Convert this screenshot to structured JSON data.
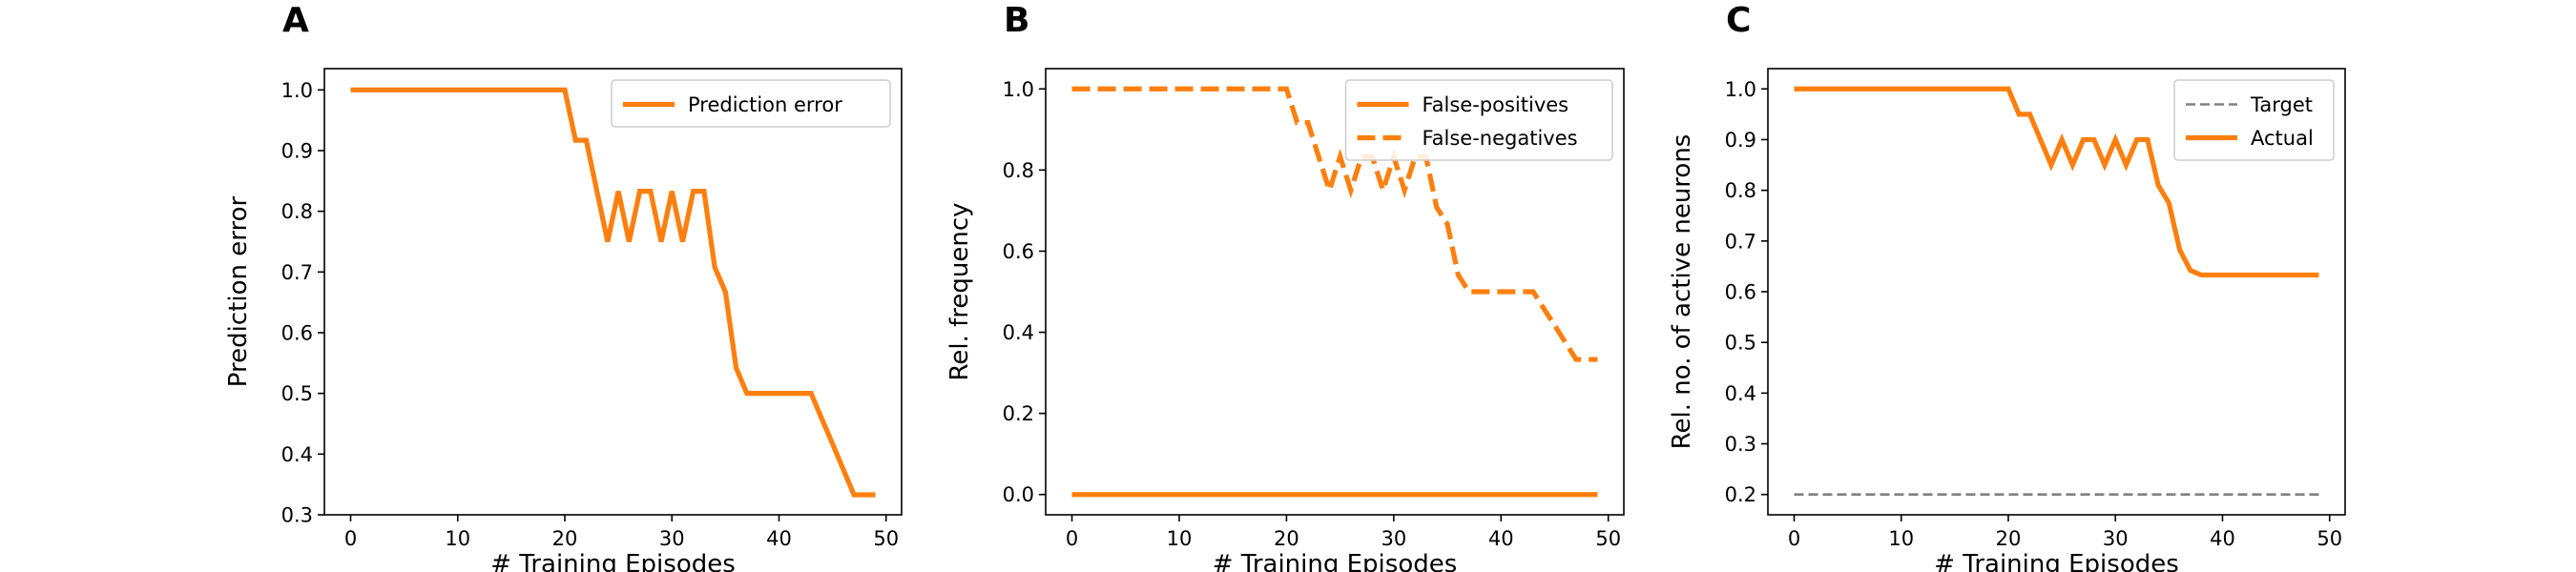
{
  "chart_data": [
    {
      "type": "line",
      "panel_label": "A",
      "xlabel": "# Training Episodes",
      "ylabel": "Prediction error",
      "xlim": [
        -2.45,
        51.45
      ],
      "ylim": [
        0.3,
        1.035
      ],
      "xticks": [
        0,
        10,
        20,
        30,
        40,
        50
      ],
      "yticks": [
        0.3,
        0.4,
        0.5,
        0.6,
        0.7,
        0.8,
        0.9,
        1.0
      ],
      "ytick_labels": [
        "0.3",
        "0.4",
        "0.5",
        "0.6",
        "0.7",
        "0.8",
        "0.9",
        "1.0"
      ],
      "legend_position": "top-right",
      "grid": false,
      "series": [
        {
          "name": "Prediction error",
          "color": "#ff7f0e",
          "style": "solid",
          "x": [
            0,
            20,
            21,
            22,
            23,
            24,
            25,
            26,
            27,
            28,
            29,
            30,
            31,
            32,
            33,
            34,
            35,
            36,
            37,
            43,
            44,
            45,
            46,
            47,
            48,
            49
          ],
          "y": [
            1.0,
            1.0,
            0.917,
            0.917,
            0.833,
            0.75,
            0.833,
            0.75,
            0.833,
            0.833,
            0.75,
            0.833,
            0.75,
            0.833,
            0.833,
            0.708,
            0.667,
            0.542,
            0.5,
            0.5,
            0.458,
            0.417,
            0.375,
            0.333,
            0.333,
            0.333
          ]
        }
      ]
    },
    {
      "type": "line",
      "panel_label": "B",
      "xlabel": "# Training Episodes",
      "ylabel": "Rel. frequency",
      "xlim": [
        -2.45,
        51.45
      ],
      "ylim": [
        -0.05,
        1.05
      ],
      "xticks": [
        0,
        10,
        20,
        30,
        40,
        50
      ],
      "yticks": [
        0.0,
        0.2,
        0.4,
        0.6,
        0.8,
        1.0
      ],
      "ytick_labels": [
        "0.0",
        "0.2",
        "0.4",
        "0.6",
        "0.8",
        "1.0"
      ],
      "legend_position": "top-right",
      "grid": false,
      "series": [
        {
          "name": "False-positives",
          "color": "#ff7f0e",
          "style": "solid",
          "x": [
            0,
            49
          ],
          "y": [
            0.0,
            0.0
          ]
        },
        {
          "name": "False-negatives",
          "color": "#ff7f0e",
          "style": "dashed",
          "x": [
            0,
            20,
            21,
            22,
            23,
            24,
            25,
            26,
            27,
            28,
            29,
            30,
            31,
            32,
            33,
            34,
            35,
            36,
            37,
            43,
            44,
            45,
            46,
            47,
            48,
            49
          ],
          "y": [
            1.0,
            1.0,
            0.917,
            0.917,
            0.833,
            0.75,
            0.833,
            0.75,
            0.833,
            0.833,
            0.75,
            0.833,
            0.75,
            0.833,
            0.833,
            0.708,
            0.667,
            0.542,
            0.5,
            0.5,
            0.458,
            0.417,
            0.375,
            0.333,
            0.333,
            0.333
          ]
        }
      ]
    },
    {
      "type": "line",
      "panel_label": "C",
      "xlabel": "# Training Episodes",
      "ylabel": "Rel. no. of active neurons",
      "xlim": [
        -2.45,
        51.45
      ],
      "ylim": [
        0.16,
        1.04
      ],
      "xticks": [
        0,
        10,
        20,
        30,
        40,
        50
      ],
      "yticks": [
        0.2,
        0.3,
        0.4,
        0.5,
        0.6,
        0.7,
        0.8,
        0.9,
        1.0
      ],
      "ytick_labels": [
        "0.2",
        "0.3",
        "0.4",
        "0.5",
        "0.6",
        "0.7",
        "0.8",
        "0.9",
        "1.0"
      ],
      "legend_position": "top-right",
      "grid": false,
      "series": [
        {
          "name": "Target",
          "color": "#808080",
          "style": "dashed",
          "x": [
            0,
            49
          ],
          "y": [
            0.2,
            0.2
          ]
        },
        {
          "name": "Actual",
          "color": "#ff7f0e",
          "style": "solid",
          "x": [
            0,
            20,
            21,
            22,
            23,
            24,
            25,
            26,
            27,
            28,
            29,
            30,
            31,
            32,
            33,
            34,
            35,
            36,
            37,
            38,
            49
          ],
          "y": [
            1.0,
            1.0,
            0.95,
            0.95,
            0.9,
            0.85,
            0.9,
            0.85,
            0.9,
            0.9,
            0.85,
            0.9,
            0.85,
            0.9,
            0.9,
            0.81,
            0.775,
            0.683,
            0.642,
            0.633,
            0.633
          ]
        }
      ]
    }
  ]
}
